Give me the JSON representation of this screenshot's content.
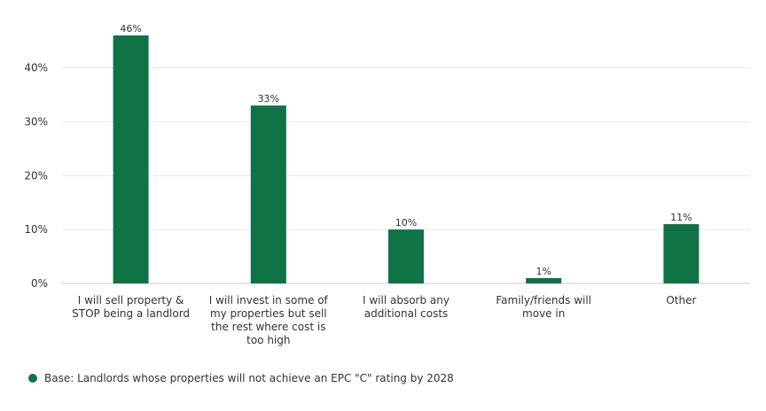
{
  "chart_data": {
    "type": "bar",
    "categories": [
      [
        "I will sell property &",
        "STOP being a landlord"
      ],
      [
        "I will invest in some of",
        "my properties but sell",
        "the rest where cost is",
        "too high"
      ],
      [
        "I will absorb any",
        "additional costs"
      ],
      [
        "Family/friends will",
        "move in"
      ],
      [
        "Other"
      ]
    ],
    "values": [
      46,
      33,
      10,
      1,
      11
    ],
    "value_labels": [
      "46%",
      "33%",
      "10%",
      "1%",
      "11%"
    ],
    "y_ticks": [
      0,
      10,
      20,
      30,
      40
    ],
    "y_tick_labels": [
      "0%",
      "10%",
      "20%",
      "30%",
      "40%"
    ],
    "ylim": [
      0,
      46
    ],
    "grid": true,
    "bar_color": "#0f7346",
    "legend_placement": "bottom-left"
  },
  "legend": {
    "text": "Base: Landlords whose properties will not achieve an EPC \"C\" rating by 2028",
    "color": "#0f7346"
  }
}
